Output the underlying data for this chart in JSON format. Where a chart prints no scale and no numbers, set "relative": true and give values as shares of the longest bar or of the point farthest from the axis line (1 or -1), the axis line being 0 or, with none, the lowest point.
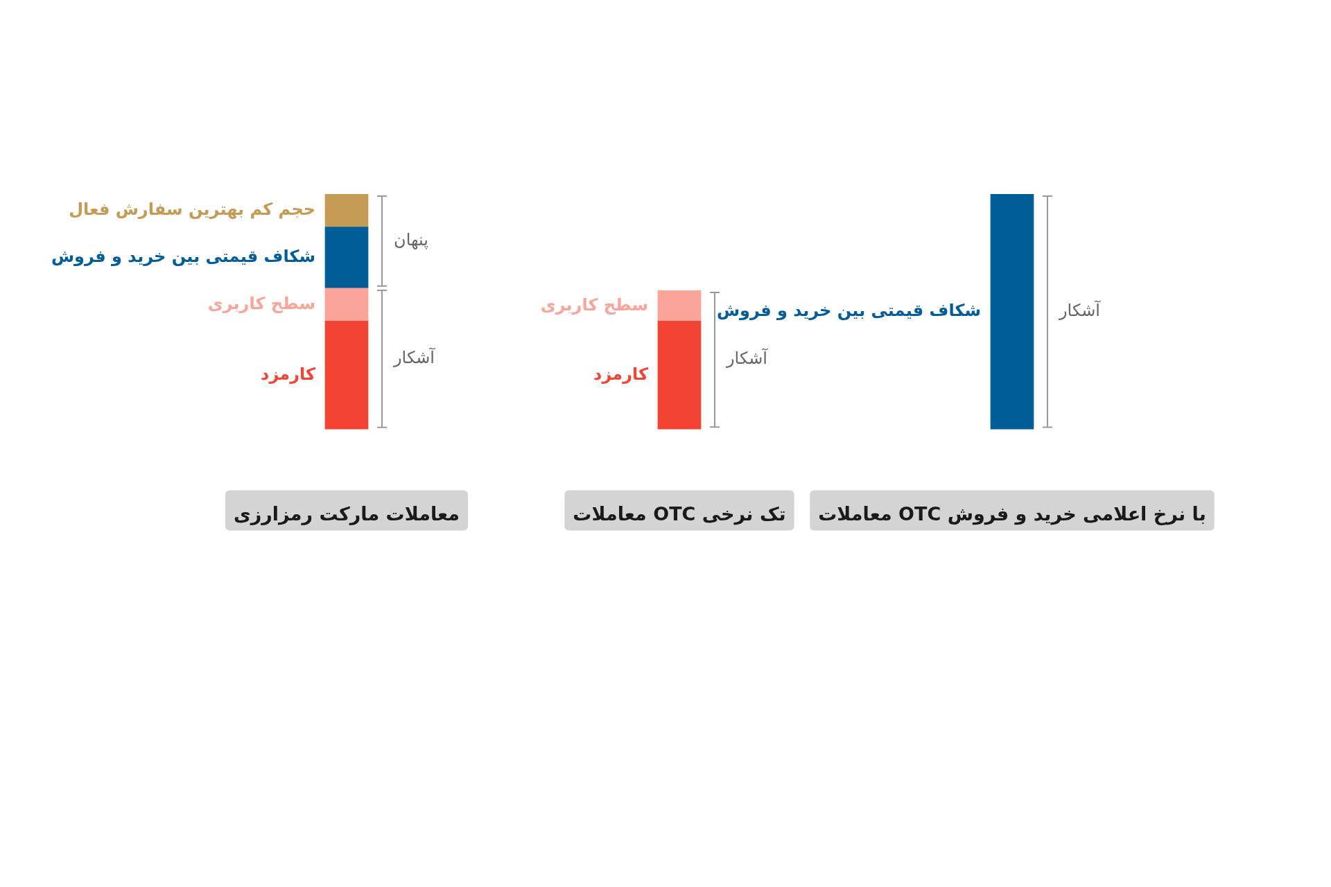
{
  "chart_data": {
    "type": "bar",
    "stacked": true,
    "relative": true,
    "legend": false,
    "grid": false,
    "categories": [
      "معاملات مارکت رمزارزی",
      "معاملات OTC تک نرخی",
      "معاملات OTC با نرخ اعلامی خرید و فروش"
    ],
    "series": [
      {
        "name": "کارمزد",
        "color": "#f44534",
        "values": [
          0.46,
          0.46,
          null
        ]
      },
      {
        "name": "سطح کاربری",
        "color": "#fba49a",
        "values": [
          0.14,
          0.13,
          null
        ]
      },
      {
        "name": "شکاف قیمتی بین خرید و فروش",
        "color": "#015d97",
        "values": [
          0.26,
          null,
          1.0
        ]
      },
      {
        "name": "حجم کم بهترین سفارش فعال",
        "color": "#c49a55",
        "values": [
          0.14,
          null,
          null
        ]
      }
    ],
    "annotations": [
      "پنهان",
      "آشکار",
      "آشکار",
      "آشکار"
    ]
  }
}
